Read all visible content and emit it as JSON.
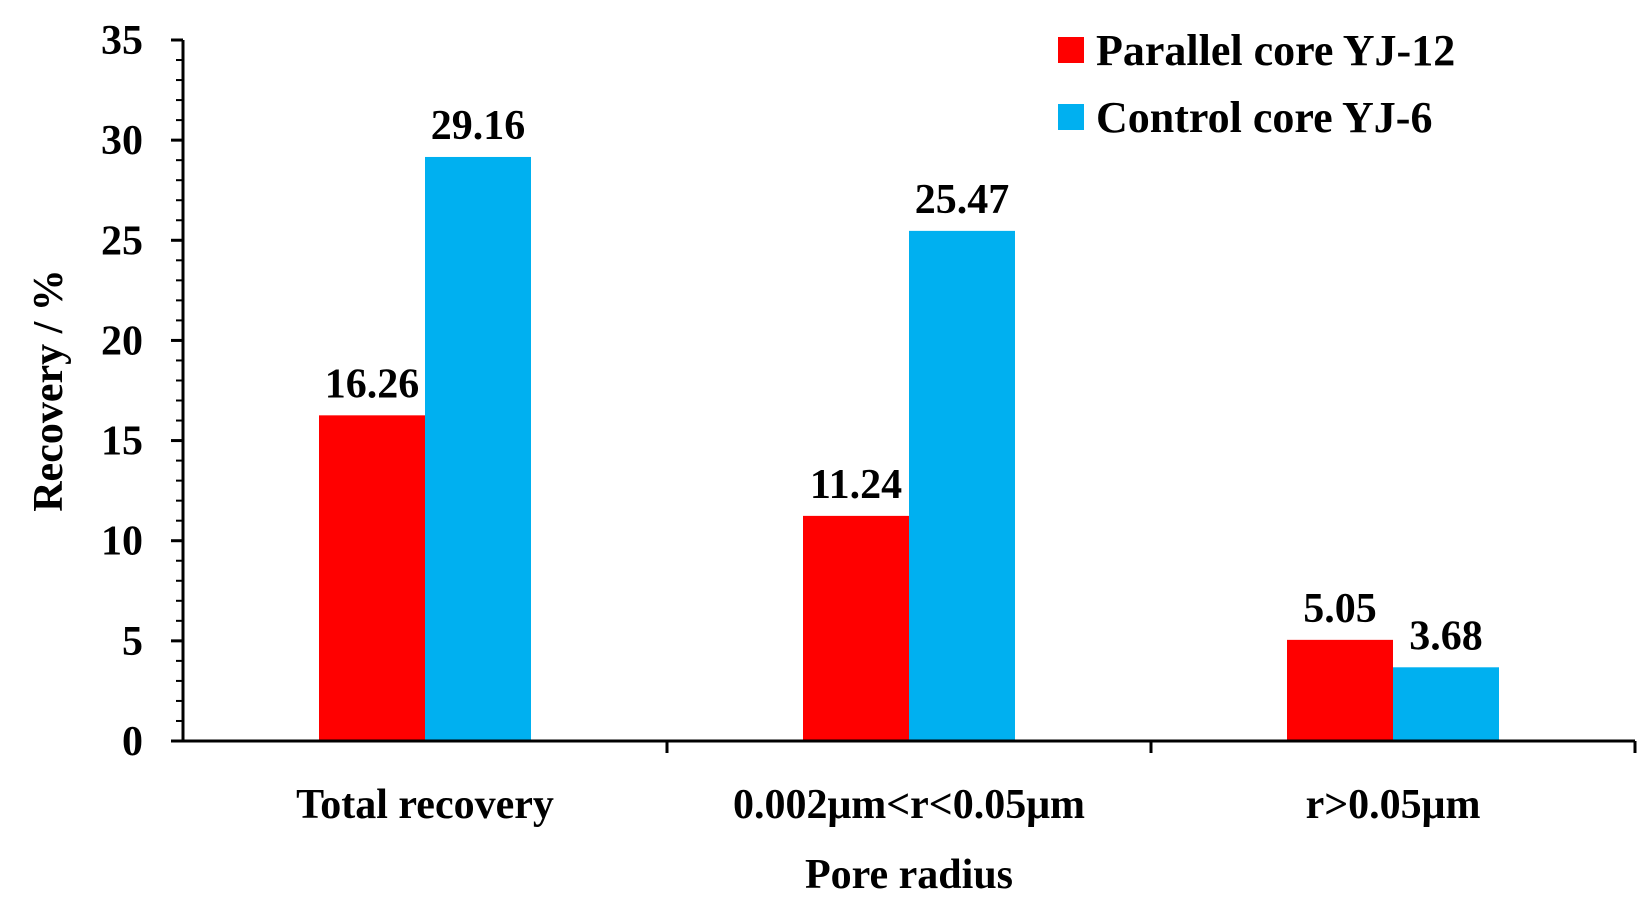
{
  "chart_data": {
    "type": "bar",
    "title": "",
    "xlabel": "Pore radius",
    "ylabel": "Recovery / %",
    "ylim": [
      0,
      35
    ],
    "yticks": [
      0,
      5,
      10,
      15,
      20,
      25,
      30,
      35
    ],
    "categories": [
      "Total recovery",
      "0.002μm<r<0.05μm",
      "r>0.05μm"
    ],
    "series": [
      {
        "name": "Parallel core YJ-12",
        "color": "#ff0000",
        "values": [
          16.26,
          11.24,
          5.05
        ],
        "labels": [
          "16.26",
          "11.24",
          "5.05"
        ]
      },
      {
        "name": "Control core YJ-6",
        "color": "#00b0f0",
        "values": [
          29.16,
          25.47,
          3.68
        ],
        "labels": [
          "29.16",
          "25.47",
          "3.68"
        ]
      }
    ],
    "legend_position": "top-right",
    "grid": false
  }
}
